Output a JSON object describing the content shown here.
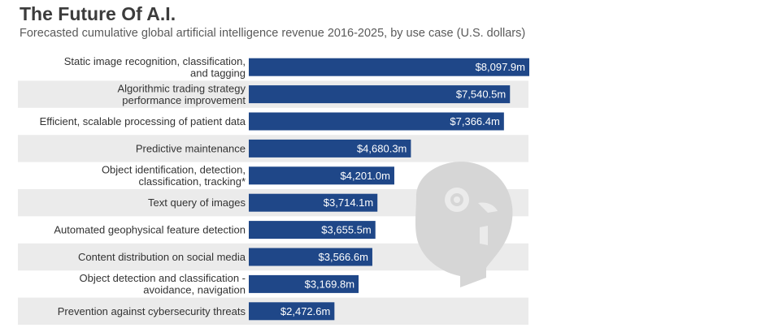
{
  "header": {
    "title": "The Future Of A.I.",
    "subtitle": "Forecasted cumulative global artificial intelligence revenue 2016-2025, by use case (U.S. dollars)"
  },
  "colors": {
    "bar": "#1f4788",
    "band": "#ebebeb",
    "robot": "#d6d6d6"
  },
  "chart_data": {
    "type": "bar",
    "orientation": "horizontal",
    "title": "The Future Of A.I.",
    "subtitle": "Forecasted cumulative global artificial intelligence revenue 2016-2025, by use case (U.S. dollars)",
    "unit": "million U.S. dollars",
    "xlim": [
      0,
      8097.9
    ],
    "categories": [
      [
        "Static image recognition, classification,",
        "and tagging"
      ],
      [
        "Algorithmic trading strategy",
        "performance improvement"
      ],
      [
        "Efficient, scalable processing of patient data"
      ],
      [
        "Predictive maintenance"
      ],
      [
        "Object identification, detection,",
        "classification, tracking*"
      ],
      [
        "Text query of images"
      ],
      [
        "Automated geophysical feature detection"
      ],
      [
        "Content distribution on social media"
      ],
      [
        "Object detection and classification -",
        "avoidance, navigation"
      ],
      [
        "Prevention against cybersecurity threats"
      ]
    ],
    "values": [
      8097.9,
      7540.5,
      7366.4,
      4680.3,
      4201.0,
      3714.1,
      3655.5,
      3566.6,
      3169.8,
      2472.6
    ],
    "data_labels": [
      "$8,097.9m",
      "$7,540.5m",
      "$7,366.4m",
      "$4,680.3m",
      "$4,201.0m",
      "$3,714.1m",
      "$3,655.5m",
      "$3,566.6m",
      "$3,169.8m",
      "$2,472.6m"
    ]
  }
}
